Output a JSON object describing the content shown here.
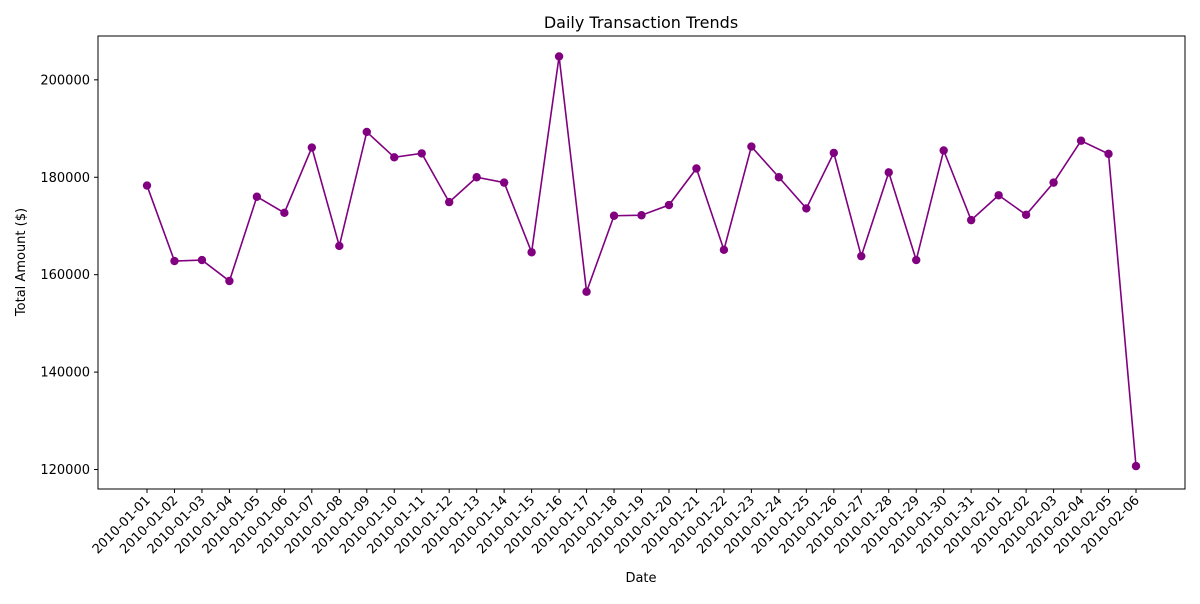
{
  "chart_data": {
    "type": "line",
    "title": "Daily Transaction Trends",
    "xlabel": "Date",
    "ylabel": "Total Amount ($)",
    "ylim": [
      116000,
      209000
    ],
    "yticks": [
      120000,
      140000,
      160000,
      180000,
      200000
    ],
    "grid": false,
    "legend": "none",
    "series": [
      {
        "color": "#800080",
        "marker": "circle",
        "x": [
          "2010-01-01",
          "2010-01-02",
          "2010-01-03",
          "2010-01-04",
          "2010-01-05",
          "2010-01-06",
          "2010-01-07",
          "2010-01-08",
          "2010-01-09",
          "2010-01-10",
          "2010-01-11",
          "2010-01-12",
          "2010-01-13",
          "2010-01-14",
          "2010-01-15",
          "2010-01-16",
          "2010-01-17",
          "2010-01-18",
          "2010-01-19",
          "2010-01-20",
          "2010-01-21",
          "2010-01-22",
          "2010-01-23",
          "2010-01-24",
          "2010-01-25",
          "2010-01-26",
          "2010-01-27",
          "2010-01-28",
          "2010-01-29",
          "2010-01-30",
          "2010-01-31",
          "2010-02-01",
          "2010-02-02",
          "2010-02-03",
          "2010-02-04",
          "2010-02-05",
          "2010-02-06"
        ],
        "values": [
          178300,
          162800,
          163000,
          158700,
          176000,
          172700,
          186100,
          165900,
          189300,
          184100,
          184900,
          174900,
          180000,
          178900,
          164600,
          204800,
          156500,
          172100,
          172200,
          174300,
          181800,
          165100,
          186300,
          180000,
          173600,
          185000,
          163800,
          181000,
          163000,
          185500,
          171200,
          176300,
          172300,
          178900,
          187500,
          184800,
          120700
        ]
      }
    ]
  }
}
